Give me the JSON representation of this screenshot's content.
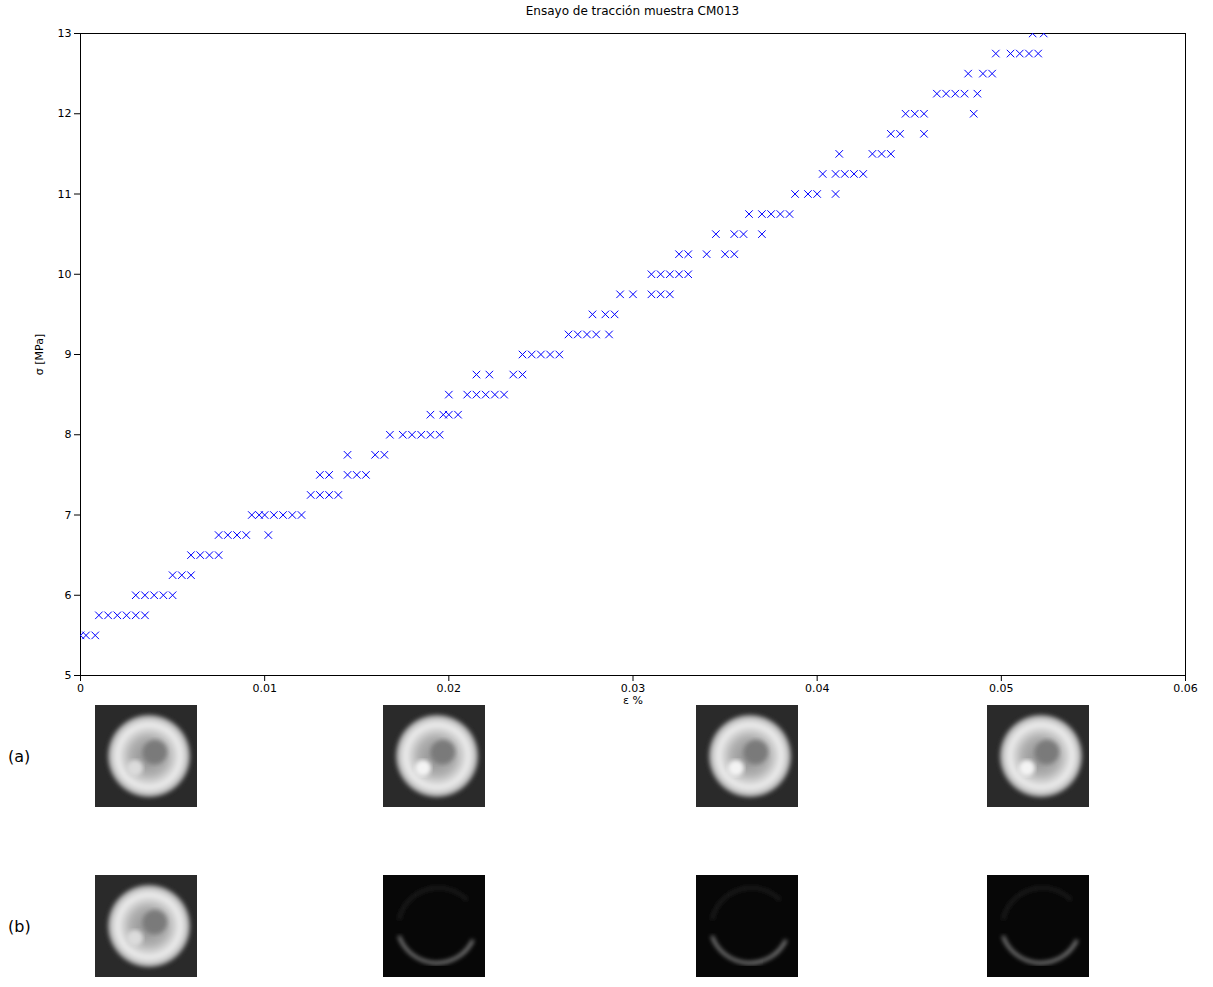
{
  "chart_data": {
    "type": "scatter",
    "title": "Ensayo de tracción muestra CM013",
    "x_label": "ε %",
    "y_label": "σ [MPa]",
    "xlim": [
      0,
      0.06
    ],
    "ylim": [
      5,
      13
    ],
    "xticks": [
      0,
      0.01,
      0.02,
      0.03,
      0.04,
      0.05,
      0.06
    ],
    "yticks": [
      5,
      6,
      7,
      8,
      9,
      10,
      11,
      12,
      13
    ],
    "grid": false,
    "color": "#0000ff",
    "marker": "x",
    "x": [
      0,
      0.0003,
      0.0008,
      0.001,
      0.0015,
      0.002,
      0.0025,
      0.003,
      0.0035,
      0.003,
      0.0035,
      0.004,
      0.0045,
      0.005,
      0.005,
      0.0055,
      0.006,
      0.006,
      0.0065,
      0.007,
      0.0075,
      0.0075,
      0.008,
      0.0085,
      0.009,
      0.0102,
      0.0093,
      0.0097,
      0.01,
      0.0105,
      0.011,
      0.0115,
      0.012,
      0.0125,
      0.013,
      0.0135,
      0.014,
      0.013,
      0.0135,
      0.0145,
      0.015,
      0.0155,
      0.0145,
      0.016,
      0.0165,
      0.0168,
      0.0175,
      0.018,
      0.0185,
      0.019,
      0.0195,
      0.019,
      0.0197,
      0.02,
      0.0205,
      0.02,
      0.021,
      0.0215,
      0.022,
      0.0225,
      0.023,
      0.0215,
      0.0222,
      0.0235,
      0.024,
      0.024,
      0.0245,
      0.025,
      0.0255,
      0.026,
      0.0265,
      0.027,
      0.0275,
      0.028,
      0.0287,
      0.0278,
      0.0285,
      0.029,
      0.0293,
      0.03,
      0.031,
      0.0315,
      0.032,
      0.031,
      0.0315,
      0.032,
      0.0325,
      0.033,
      0.0325,
      0.033,
      0.034,
      0.035,
      0.0355,
      0.0345,
      0.0355,
      0.036,
      0.037,
      0.0363,
      0.037,
      0.0375,
      0.038,
      0.0385,
      0.0388,
      0.0395,
      0.04,
      0.041,
      0.0403,
      0.041,
      0.0415,
      0.042,
      0.0425,
      0.0412,
      0.043,
      0.0435,
      0.044,
      0.044,
      0.0445,
      0.0458,
      0.0448,
      0.0453,
      0.0458,
      0.0485,
      0.0465,
      0.047,
      0.0475,
      0.048,
      0.0487,
      0.0482,
      0.049,
      0.0495,
      0.0497,
      0.0505,
      0.051,
      0.0515,
      0.052,
      0.0517,
      0.0523
    ],
    "values": [
      5.5,
      5.5,
      5.5,
      5.75,
      5.75,
      5.75,
      5.75,
      5.75,
      5.75,
      6,
      6,
      6,
      6,
      6,
      6.25,
      6.25,
      6.25,
      6.5,
      6.5,
      6.5,
      6.5,
      6.75,
      6.75,
      6.75,
      6.75,
      6.75,
      7,
      7,
      7,
      7,
      7,
      7,
      7,
      7.25,
      7.25,
      7.25,
      7.25,
      7.5,
      7.5,
      7.5,
      7.5,
      7.5,
      7.75,
      7.75,
      7.75,
      8,
      8,
      8,
      8,
      8,
      8,
      8.25,
      8.25,
      8.25,
      8.25,
      8.5,
      8.5,
      8.5,
      8.5,
      8.5,
      8.5,
      8.75,
      8.75,
      8.75,
      8.75,
      9,
      9,
      9,
      9,
      9,
      9.25,
      9.25,
      9.25,
      9.25,
      9.25,
      9.5,
      9.5,
      9.5,
      9.75,
      9.75,
      9.75,
      9.75,
      9.75,
      10,
      10,
      10,
      10,
      10,
      10.25,
      10.25,
      10.25,
      10.25,
      10.25,
      10.5,
      10.5,
      10.5,
      10.5,
      10.75,
      10.75,
      10.75,
      10.75,
      10.75,
      11,
      11,
      11,
      11,
      11.25,
      11.25,
      11.25,
      11.25,
      11.25,
      11.5,
      11.5,
      11.5,
      11.5,
      11.75,
      11.75,
      11.75,
      12,
      12,
      12,
      12,
      12.25,
      12.25,
      12.25,
      12.25,
      12.25,
      12.5,
      12.5,
      12.5,
      12.75,
      12.75,
      12.75,
      12.75,
      12.75,
      13,
      13
    ]
  },
  "image_rows": [
    {
      "label": "(a)"
    },
    {
      "label": "(b)"
    }
  ]
}
